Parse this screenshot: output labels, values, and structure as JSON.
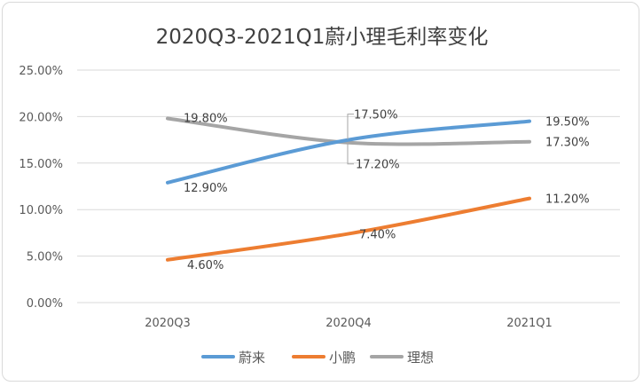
{
  "chart_data": {
    "type": "line",
    "title": "2020Q3-2021Q1蔚小理毛利率变化",
    "categories": [
      "2020Q3",
      "2020Q4",
      "2021Q1"
    ],
    "ylim": [
      0,
      25
    ],
    "yticks": [
      "0.00%",
      "5.00%",
      "10.00%",
      "15.00%",
      "20.00%",
      "25.00%"
    ],
    "grid": true,
    "legend_position": "bottom",
    "series": [
      {
        "name": "蔚来",
        "values": [
          12.9,
          17.5,
          19.5
        ],
        "labels": [
          "12.90%",
          "17.50%",
          "19.50%"
        ],
        "color": "#5B9BD5"
      },
      {
        "name": "小鹏",
        "values": [
          4.6,
          7.4,
          11.2
        ],
        "labels": [
          "4.60%",
          "7.40%",
          "11.20%"
        ],
        "color": "#ED7D31"
      },
      {
        "name": "理想",
        "values": [
          19.8,
          17.2,
          17.3
        ],
        "labels": [
          "19.80%",
          "17.20%",
          "17.30%"
        ],
        "color": "#A5A5A5"
      }
    ]
  }
}
